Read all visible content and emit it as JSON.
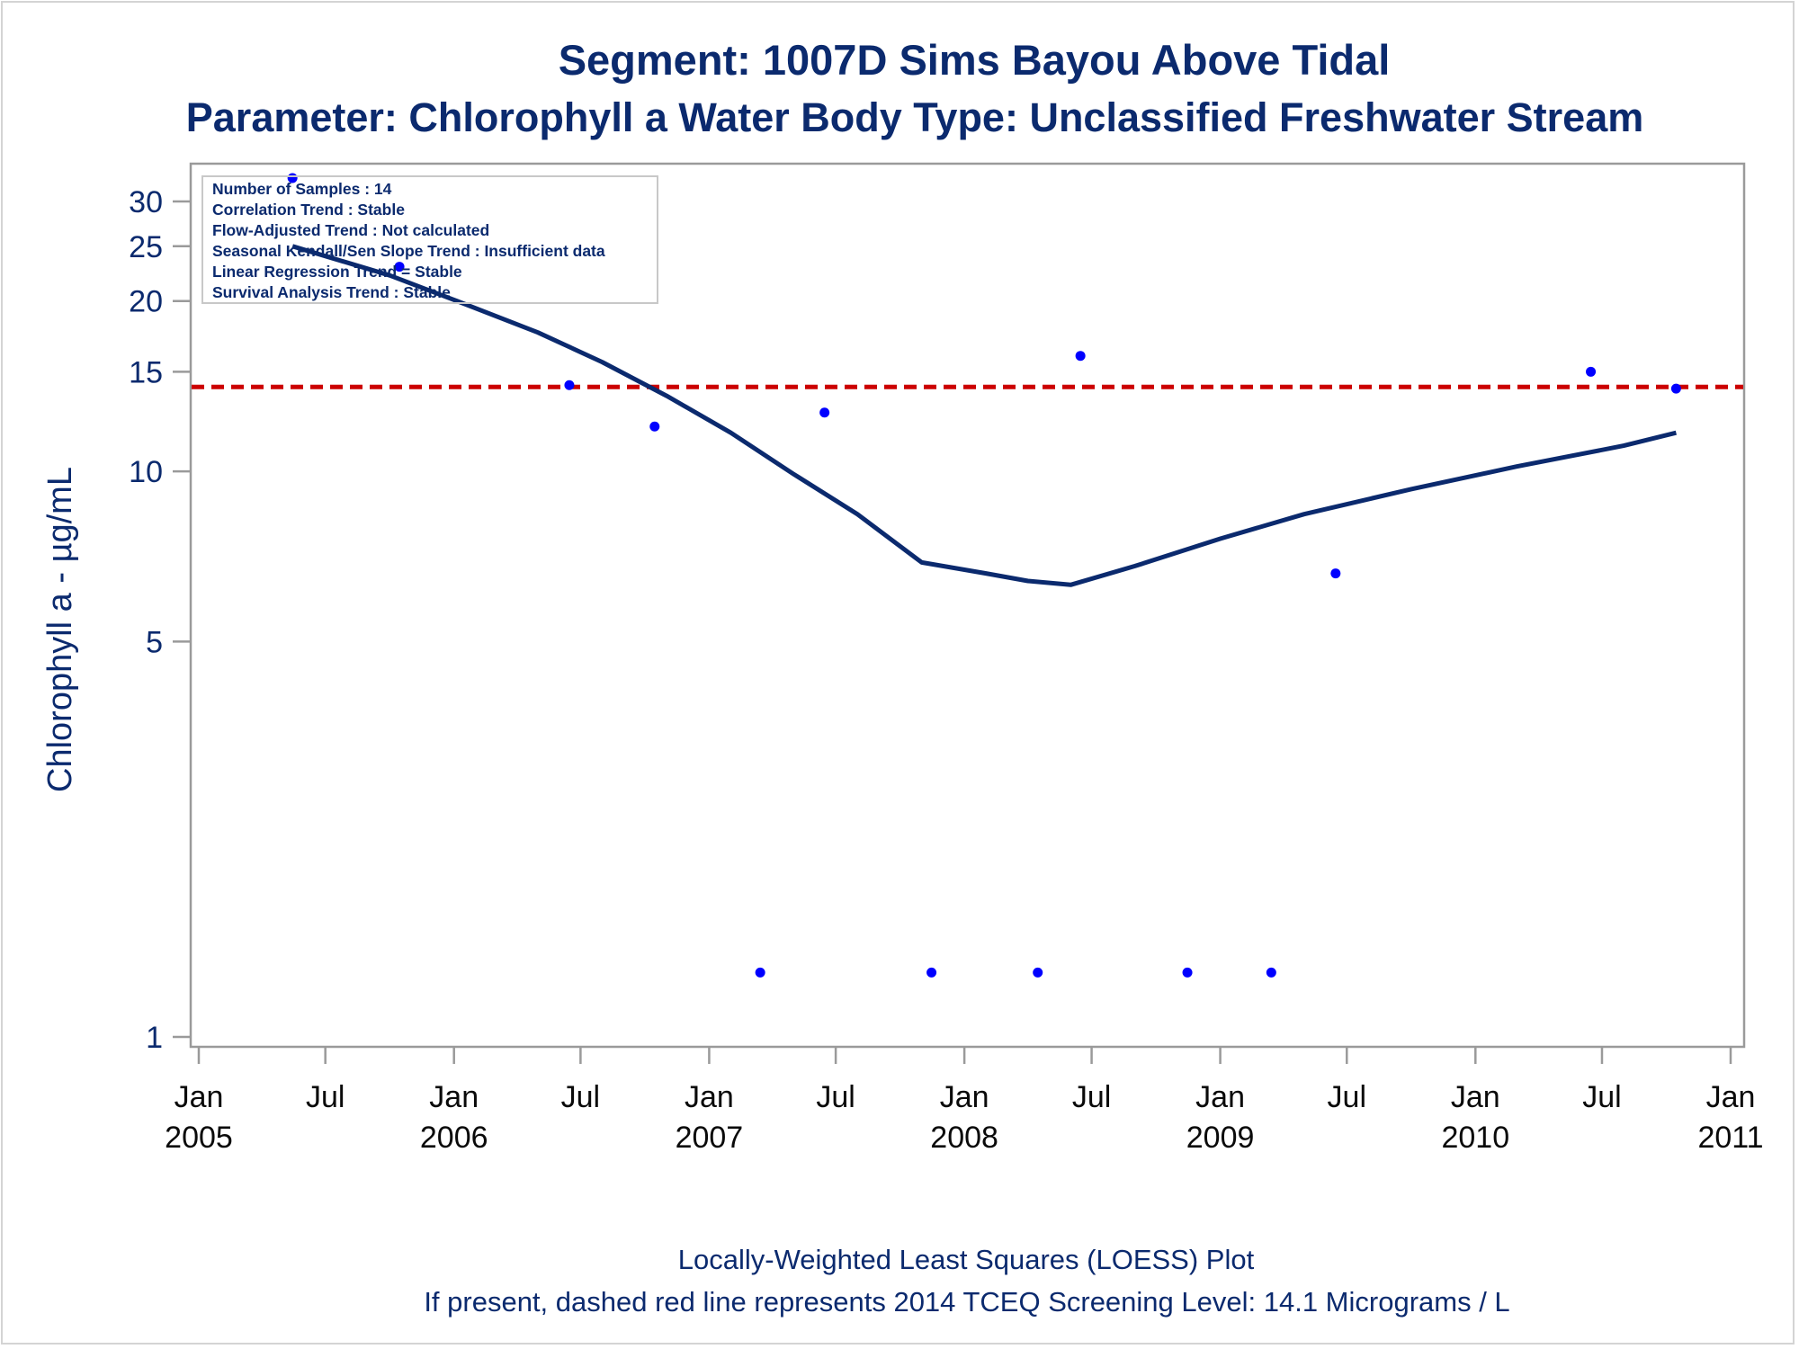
{
  "chart_data": {
    "type": "scatter",
    "title": "Segment: 1007D  Sims Bayou Above Tidal",
    "subtitle": "Parameter: Chlorophyll a   Water Body Type: Unclassified Freshwater Stream",
    "ylabel": "Chlorophyll a -  µg/mL",
    "xlabel": "",
    "y_scale": "log",
    "ylim": [
      1,
      35
    ],
    "xlim": [
      "2005-01-01",
      "2011-01-01"
    ],
    "y_ticks": [
      1,
      5,
      10,
      15,
      20,
      25,
      30
    ],
    "x_ticks": [
      {
        "date": "2005-01-01",
        "line1": "Jan",
        "line2": "2005"
      },
      {
        "date": "2005-07-01",
        "line1": "Jul",
        "line2": ""
      },
      {
        "date": "2006-01-01",
        "line1": "Jan",
        "line2": "2006"
      },
      {
        "date": "2006-07-01",
        "line1": "Jul",
        "line2": ""
      },
      {
        "date": "2007-01-01",
        "line1": "Jan",
        "line2": "2007"
      },
      {
        "date": "2007-07-01",
        "line1": "Jul",
        "line2": ""
      },
      {
        "date": "2008-01-01",
        "line1": "Jan",
        "line2": "2008"
      },
      {
        "date": "2008-07-01",
        "line1": "Jul",
        "line2": ""
      },
      {
        "date": "2009-01-01",
        "line1": "Jan",
        "line2": "2009"
      },
      {
        "date": "2009-07-01",
        "line1": "Jul",
        "line2": ""
      },
      {
        "date": "2010-01-01",
        "line1": "Jan",
        "line2": "2010"
      },
      {
        "date": "2010-07-01",
        "line1": "Jul",
        "line2": ""
      },
      {
        "date": "2011-01-01",
        "line1": "Jan",
        "line2": "2011"
      }
    ],
    "points": [
      {
        "x": "2005-05-15",
        "y": 33.0
      },
      {
        "x": "2005-10-15",
        "y": 23.0
      },
      {
        "x": "2006-06-15",
        "y": 14.2
      },
      {
        "x": "2006-10-15",
        "y": 12.0
      },
      {
        "x": "2007-03-15",
        "y": 1.3
      },
      {
        "x": "2007-06-15",
        "y": 12.7
      },
      {
        "x": "2007-11-15",
        "y": 1.3
      },
      {
        "x": "2008-04-15",
        "y": 1.3
      },
      {
        "x": "2008-06-15",
        "y": 16.0
      },
      {
        "x": "2008-11-15",
        "y": 1.3
      },
      {
        "x": "2009-03-15",
        "y": 1.3
      },
      {
        "x": "2009-06-15",
        "y": 6.6
      },
      {
        "x": "2010-06-15",
        "y": 15.0
      },
      {
        "x": "2010-10-15",
        "y": 14.0
      }
    ],
    "loess": [
      {
        "x": "2005-05-15",
        "y": 25.0
      },
      {
        "x": "2005-10-01",
        "y": 22.2
      },
      {
        "x": "2006-01-01",
        "y": 20.1
      },
      {
        "x": "2006-05-01",
        "y": 17.6
      },
      {
        "x": "2006-08-01",
        "y": 15.6
      },
      {
        "x": "2006-11-01",
        "y": 13.6
      },
      {
        "x": "2007-02-01",
        "y": 11.7
      },
      {
        "x": "2007-05-01",
        "y": 9.9
      },
      {
        "x": "2007-08-01",
        "y": 8.4
      },
      {
        "x": "2007-11-01",
        "y": 6.9
      },
      {
        "x": "2008-02-01",
        "y": 6.6
      },
      {
        "x": "2008-04-01",
        "y": 6.4
      },
      {
        "x": "2008-06-01",
        "y": 6.3
      },
      {
        "x": "2008-09-01",
        "y": 6.8
      },
      {
        "x": "2009-01-01",
        "y": 7.6
      },
      {
        "x": "2009-05-01",
        "y": 8.4
      },
      {
        "x": "2009-10-01",
        "y": 9.3
      },
      {
        "x": "2010-03-01",
        "y": 10.2
      },
      {
        "x": "2010-08-01",
        "y": 11.1
      },
      {
        "x": "2010-10-15",
        "y": 11.7
      }
    ],
    "screening_level": 14.1,
    "colors": {
      "points": "#0000ff",
      "loess": "#0b2a6e",
      "screening": "#cc0000",
      "text": "#0b2a6e",
      "axis": "#9a9a9a"
    },
    "grid": false,
    "legend_placement": "none"
  },
  "inset": {
    "lines": [
      "Number of Samples : 14",
      "Correlation Trend : Stable",
      "Flow-Adjusted Trend : Not calculated",
      "Seasonal Kendall/Sen Slope Trend : Insufficient data",
      "Linear Regression Trend = Stable",
      "Survival Analysis Trend : Stable"
    ]
  },
  "footnote": {
    "line1": "Locally-Weighted Least Squares (LOESS) Plot",
    "line2": "If present, dashed red line represents 2014 TCEQ Screening Level: 14.1 Micrograms / L"
  }
}
